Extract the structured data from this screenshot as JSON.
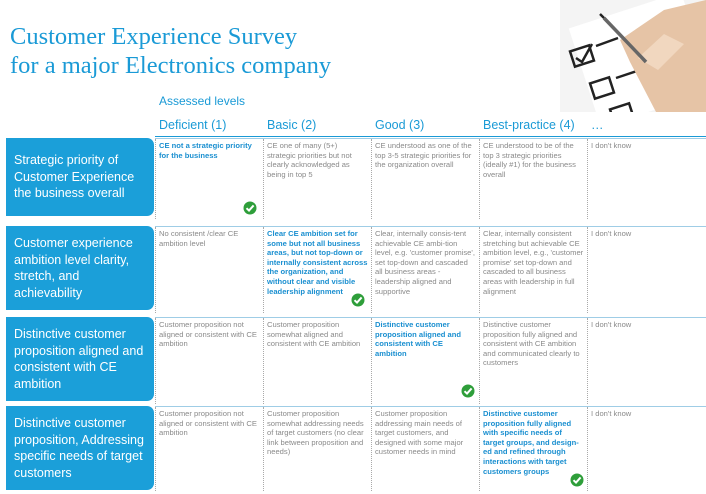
{
  "title": [
    "Customer Experience Survey",
    "for a major Electronics company"
  ],
  "assessed_label": "Assessed levels",
  "levels": [
    "Deficient (1)",
    "Basic (2)",
    "Good (3)",
    "Best-practice (4)",
    "…"
  ],
  "colors": {
    "accent": "#1a9ad6",
    "row_label_bg": "#1b9fd9",
    "check_green": "#2e9e3a"
  },
  "rows": [
    {
      "label": "Strategic priority of Customer Experience the business  overall",
      "highlight": 0,
      "cells": [
        "CE not a strategic priority for the business",
        "CE one of many (5+) strategic priorities but not clearly acknowledged as being in top 5",
        "CE understood as one of the top 3-5 strategic priorities for the organization overall",
        "CE understood to be of the top 3 strategic priorities (ideally #1) for the business overall",
        "I don't know"
      ]
    },
    {
      "label": "Customer experience ambition level clarity, stretch, and achievability",
      "highlight": 1,
      "cells": [
        "No consistent /clear CE ambition level",
        "Clear CE ambition  set for some but not all business areas, but not top-down or internally consistent across the organization, and without clear and visible leadership alignment",
        "Clear, internally consis-tent achievable CE ambi-tion level, e.g. 'customer promise', set top-down and cascaded all business areas - leadership aligned and supportive",
        "Clear, internally consistent stretching but achievable CE ambition level, e.g., 'customer promise' set top-down and cascaded to all business areas with leadership in full alignment",
        "I don't know"
      ]
    },
    {
      "label": "Distinctive customer proposition  aligned and consistent with CE ambition",
      "highlight": 2,
      "cells": [
        "Customer proposition not aligned or consistent with CE ambition",
        "Customer proposition somewhat aligned and consistent with CE ambition",
        "Distinctive customer proposition aligned and consistent with CE ambition",
        "Distinctive customer proposition fully aligned and consistent with CE ambition and communicated clearly to customers",
        "I don't know"
      ]
    },
    {
      "label": "Distinctive customer proposition, Addressing specific needs of target customers",
      "highlight": 3,
      "cells": [
        "Customer proposition not aligned or consistent with CE ambition",
        "Customer proposition somewhat addressing needs of target customers (no clear link between proposition and needs)",
        "Customer proposition addressing main needs of target customers, and designed with some major customer needs in mind",
        "Distinctive customer proposition fully aligned with specific needs of target groups, and design-ed and refined through interactions with target customers groups",
        "I don't know"
      ]
    }
  ]
}
